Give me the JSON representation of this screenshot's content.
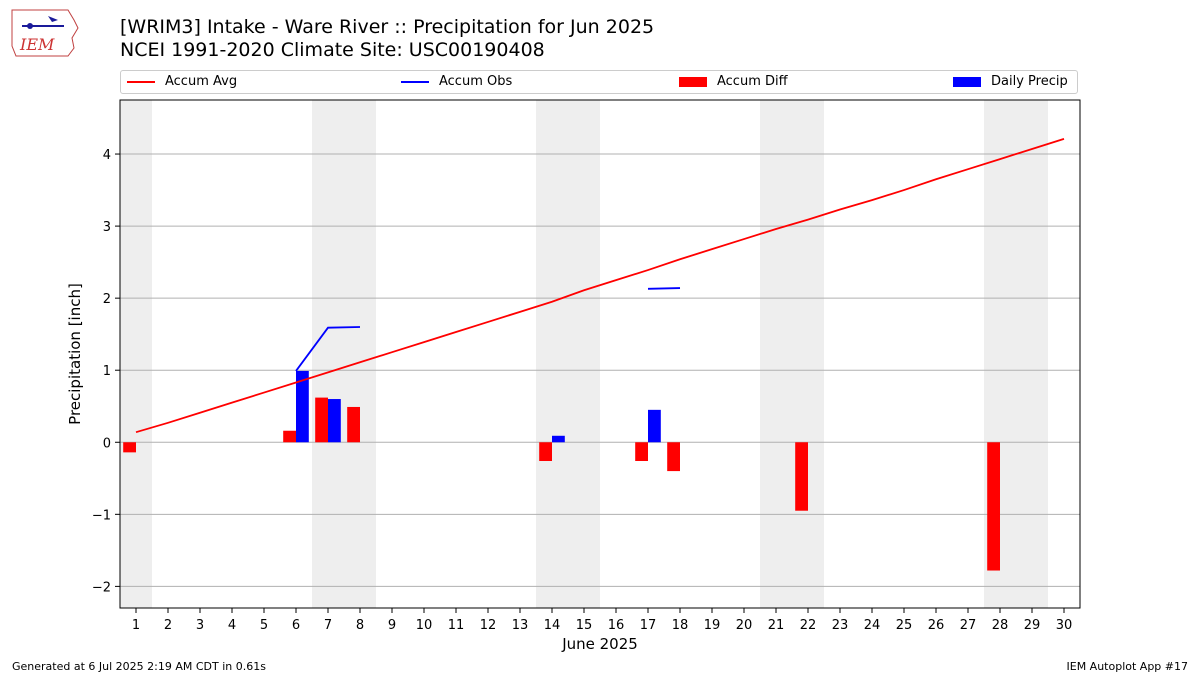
{
  "logo": {
    "text": "IEM"
  },
  "header": {
    "title": "[WRIM3] Intake - Ware River :: Precipitation for Jun 2025",
    "subtitle": "NCEI 1991-2020 Climate Site: USC00190408"
  },
  "legend": {
    "items": [
      {
        "label": "Accum Avg",
        "kind": "line",
        "color": "#ff0000"
      },
      {
        "label": "Accum Obs",
        "kind": "line",
        "color": "#0000ff"
      },
      {
        "label": "Accum Diff",
        "kind": "bar",
        "color": "#ff0000"
      },
      {
        "label": "Daily Precip",
        "kind": "bar",
        "color": "#0000ff"
      }
    ]
  },
  "chart_data": {
    "type": "bar",
    "xlabel": "June 2025",
    "ylabel": "Precipitation [inch]",
    "xlim": [
      0.5,
      30.5
    ],
    "ylim": [
      -2.3,
      4.75
    ],
    "x_ticks": [
      1,
      2,
      3,
      4,
      5,
      6,
      7,
      8,
      9,
      10,
      11,
      12,
      13,
      14,
      15,
      16,
      17,
      18,
      19,
      20,
      21,
      22,
      23,
      24,
      25,
      26,
      27,
      28,
      29,
      30
    ],
    "y_ticks": [
      -2,
      -1,
      0,
      1,
      2,
      3,
      4
    ],
    "grid": "horizontal",
    "weekend_shading": [
      [
        0.5,
        1.5
      ],
      [
        6.5,
        8.5
      ],
      [
        13.5,
        15.5
      ],
      [
        20.5,
        22.5
      ],
      [
        27.5,
        29.5
      ]
    ],
    "accum_avg": {
      "x": [
        1,
        2,
        3,
        4,
        5,
        6,
        7,
        8,
        9,
        10,
        11,
        12,
        13,
        14,
        15,
        16,
        17,
        18,
        19,
        20,
        21,
        22,
        23,
        24,
        25,
        26,
        27,
        28,
        29,
        30
      ],
      "y": [
        0.14,
        0.27,
        0.41,
        0.55,
        0.69,
        0.83,
        0.97,
        1.11,
        1.25,
        1.39,
        1.53,
        1.67,
        1.81,
        1.95,
        2.11,
        2.25,
        2.39,
        2.54,
        2.68,
        2.82,
        2.96,
        3.09,
        3.23,
        3.36,
        3.5,
        3.65,
        3.79,
        3.93,
        4.07,
        4.21
      ],
      "color": "#ff0000"
    },
    "accum_obs": {
      "segments": [
        {
          "x": [
            6,
            7,
            8
          ],
          "y": [
            0.99,
            1.59,
            1.6
          ]
        },
        {
          "x": [
            17,
            18
          ],
          "y": [
            2.13,
            2.14
          ]
        }
      ],
      "color": "#0000ff"
    },
    "accum_diff": {
      "x": [
        1,
        6,
        7,
        8,
        14,
        17,
        18,
        22,
        28
      ],
      "y": [
        -0.14,
        0.16,
        0.62,
        0.49,
        -0.26,
        -0.26,
        -0.4,
        -0.95,
        -1.78
      ],
      "color": "#ff0000"
    },
    "daily_precip": {
      "x": [
        6,
        7,
        14,
        17
      ],
      "y": [
        0.99,
        0.6,
        0.09,
        0.45
      ],
      "color": "#0000ff"
    }
  },
  "footer": {
    "left": "Generated at 6 Jul 2025 2:19 AM CDT in 0.61s",
    "right": "IEM Autoplot App #17"
  }
}
